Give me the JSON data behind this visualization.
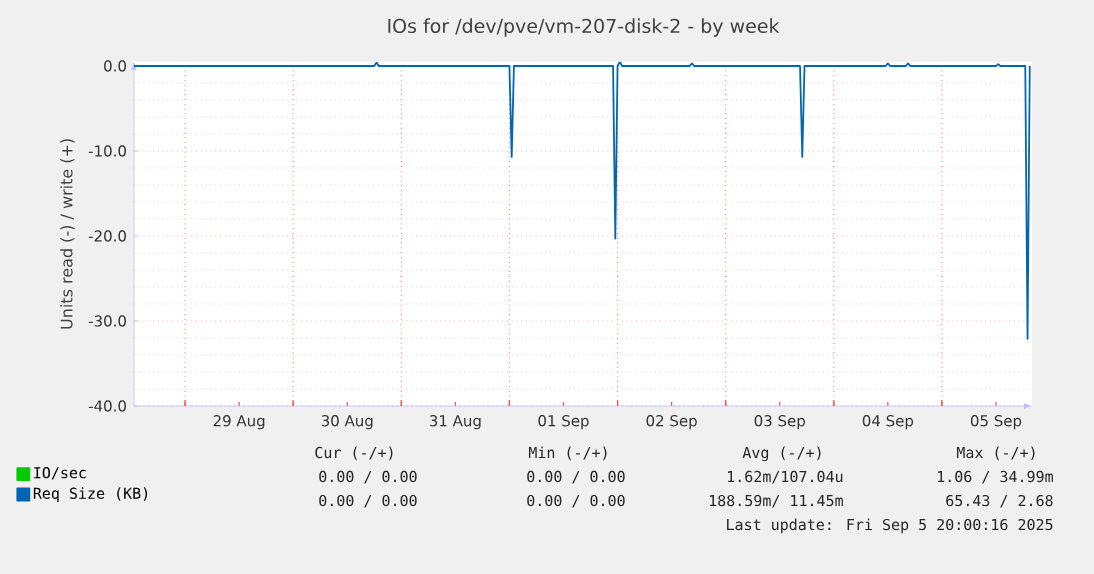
{
  "chart_data": {
    "type": "line",
    "title": "IOs for /dev/pve/vm-207-disk-2 - by week",
    "ylabel": "Units read (-) / write (+)",
    "xlim": [
      "2025-08-28T12:40",
      "2025-09-05T20:00"
    ],
    "ylim": [
      -40,
      0.5
    ],
    "xticks": [
      {
        "value": "2025-08-29T00:00",
        "label": null
      },
      {
        "value": "2025-08-30T00:00",
        "label": null
      },
      {
        "value": "2025-08-31T00:00",
        "label": null
      },
      {
        "value": "2025-09-01T00:00",
        "label": null
      },
      {
        "value": "2025-09-02T00:00",
        "label": null
      },
      {
        "value": "2025-09-03T00:00",
        "label": null
      },
      {
        "value": "2025-09-04T00:00",
        "label": null
      },
      {
        "value": "2025-09-05T00:00",
        "label": null
      },
      {
        "value": "2025-08-29T12:00",
        "label": "29 Aug"
      },
      {
        "value": "2025-08-30T12:00",
        "label": "30 Aug"
      },
      {
        "value": "2025-08-31T12:00",
        "label": "31 Aug"
      },
      {
        "value": "2025-09-01T12:00",
        "label": "01 Sep"
      },
      {
        "value": "2025-09-02T12:00",
        "label": "02 Sep"
      },
      {
        "value": "2025-09-03T12:00",
        "label": "03 Sep"
      },
      {
        "value": "2025-09-04T12:00",
        "label": "04 Sep"
      },
      {
        "value": "2025-09-05T12:00",
        "label": "05 Sep"
      }
    ],
    "yticks": [
      {
        "value": 0,
        "label": "0.0"
      },
      {
        "value": -10,
        "label": "-10.0"
      },
      {
        "value": -20,
        "label": "-20.0"
      },
      {
        "value": -30,
        "label": "-30.0"
      },
      {
        "value": -40,
        "label": "-40.0"
      }
    ],
    "grid": true,
    "legend": "bottom",
    "series": [
      {
        "name": "IO/sec",
        "color": "#00cc00"
      },
      {
        "name": "Req Size (KB)",
        "color": "#0066b3",
        "x": [
          "2025-08-28T12:40",
          "2025-08-30T18:00",
          "2025-08-30T18:30",
          "2025-08-30T19:00",
          "2025-09-01T00:00",
          "2025-09-01T00:30",
          "2025-09-01T01:00",
          "2025-09-01T23:00",
          "2025-09-01T23:30",
          "2025-09-02T00:00",
          "2025-09-02T00:30",
          "2025-09-02T01:00",
          "2025-09-02T16:00",
          "2025-09-02T16:30",
          "2025-09-02T17:00",
          "2025-09-03T16:30",
          "2025-09-03T17:00",
          "2025-09-03T17:30",
          "2025-09-04T11:30",
          "2025-09-04T12:00",
          "2025-09-04T12:30",
          "2025-09-04T16:00",
          "2025-09-04T16:30",
          "2025-09-04T17:00",
          "2025-09-05T12:00",
          "2025-09-05T12:30",
          "2025-09-05T13:00",
          "2025-09-05T18:30",
          "2025-09-05T19:00",
          "2025-09-05T19:30"
        ],
        "values": [
          0,
          0,
          0.4,
          0,
          0,
          -10.7,
          0,
          0,
          -20.3,
          0,
          0.5,
          0,
          0,
          0.3,
          0,
          0,
          -10.7,
          0,
          0,
          0.3,
          0,
          0,
          0.3,
          0,
          0,
          0.2,
          0,
          0,
          -32.1,
          0
        ]
      }
    ],
    "annotations": [
      "Cur (-/+)",
      "Min (-/+)",
      "Avg (-/+)",
      "Max (-/+)",
      "0.00 /  0.00",
      "0.00 /  0.00",
      "1.62m/107.04u",
      "1.06 / 34.99m",
      "0.00 /  0.00",
      "0.00 /  0.00",
      "188.59m/ 11.45m",
      "65.43 /  2.68",
      "Last update: Fri Sep  5 20:00:16 2025"
    ]
  }
}
